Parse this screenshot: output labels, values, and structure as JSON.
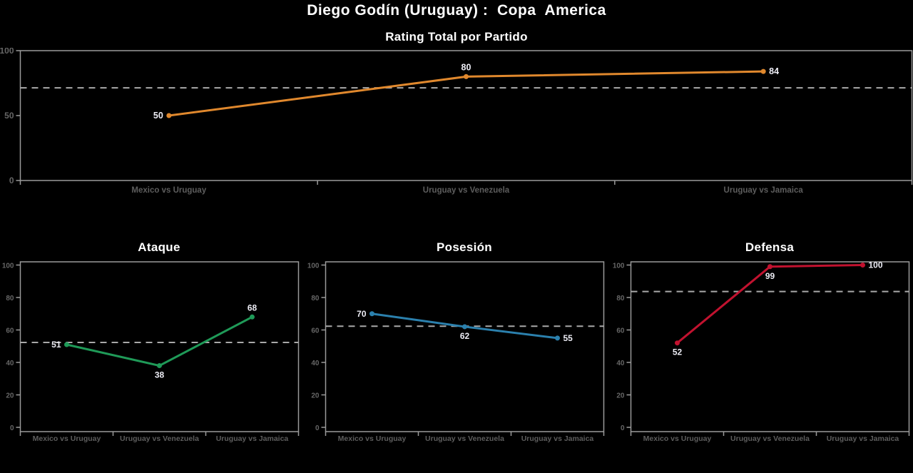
{
  "page": {
    "title": "Diego Godín (Uruguay) :  Copa  America",
    "background": "#000000",
    "title_color": "#ffffff"
  },
  "style": {
    "axis_color": "#9a9a9a",
    "tick_label_color": "#666666",
    "category_label_color": "#5d5d5d",
    "mean_line_color": "#a9a9a9",
    "data_label_color": "#ededf5"
  },
  "chart_data": [
    {
      "id": "rating-total",
      "type": "line",
      "title": "Rating Total por Partido",
      "categories": [
        "Mexico vs Uruguay",
        "Uruguay vs Venezuela",
        "Uruguay vs Jamaica"
      ],
      "values": [
        50,
        80,
        84
      ],
      "mean_line": 71.33,
      "ylim": [
        0,
        100
      ],
      "yticks": [
        0,
        50,
        100
      ],
      "line_color": "#e0882d",
      "label_positions": [
        "left",
        "top",
        "right"
      ],
      "grid": false,
      "legend": "none"
    },
    {
      "id": "ataque",
      "type": "line",
      "title": "Ataque",
      "categories": [
        "Mexico vs Uruguay",
        "Uruguay vs Venezuela",
        "Uruguay vs Jamaica"
      ],
      "values": [
        51,
        38,
        68
      ],
      "mean_line": 52.33,
      "ylim": [
        0,
        100
      ],
      "yticks": [
        0,
        20,
        40,
        60,
        80,
        100
      ],
      "line_color": "#1f9a58",
      "label_positions": [
        "left",
        "bottom",
        "top"
      ],
      "grid": false,
      "legend": "none"
    },
    {
      "id": "posesion",
      "type": "line",
      "title": "Posesión",
      "categories": [
        "Mexico vs Uruguay",
        "Uruguay vs Venezuela",
        "Uruguay vs Jamaica"
      ],
      "values": [
        70,
        62,
        55
      ],
      "mean_line": 62.33,
      "ylim": [
        0,
        100
      ],
      "yticks": [
        0,
        20,
        40,
        60,
        80,
        100
      ],
      "line_color": "#2b80ad",
      "label_positions": [
        "left",
        "bottom",
        "right"
      ],
      "grid": false,
      "legend": "none"
    },
    {
      "id": "defensa",
      "type": "line",
      "title": "Defensa",
      "categories": [
        "Mexico vs Uruguay",
        "Uruguay vs Venezuela",
        "Uruguay vs Jamaica"
      ],
      "values": [
        52,
        99,
        100
      ],
      "mean_line": 83.67,
      "ylim": [
        0,
        100
      ],
      "yticks": [
        0,
        20,
        40,
        60,
        80,
        100
      ],
      "line_color": "#c1122f",
      "label_positions": [
        "bottom",
        "bottom",
        "right"
      ],
      "grid": false,
      "legend": "none"
    }
  ]
}
